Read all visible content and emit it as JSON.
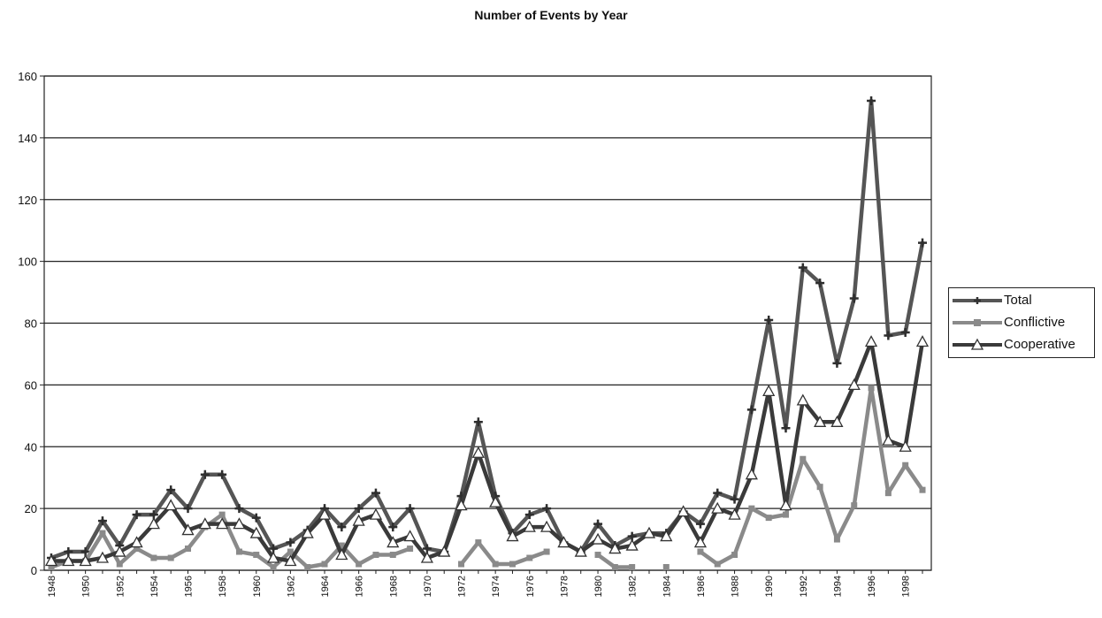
{
  "chart_data": {
    "type": "line",
    "title": "Number of Events by Year",
    "xlabel": "",
    "ylabel": "",
    "ylim": [
      0,
      160
    ],
    "yticks": [
      0,
      20,
      40,
      60,
      80,
      100,
      120,
      140,
      160
    ],
    "x": [
      1948,
      1949,
      1950,
      1951,
      1952,
      1953,
      1954,
      1955,
      1956,
      1957,
      1958,
      1959,
      1960,
      1961,
      1962,
      1963,
      1964,
      1965,
      1966,
      1967,
      1968,
      1969,
      1970,
      1971,
      1972,
      1973,
      1974,
      1975,
      1976,
      1977,
      1978,
      1979,
      1980,
      1981,
      1982,
      1983,
      1984,
      1985,
      1986,
      1987,
      1988,
      1989,
      1990,
      1991,
      1992,
      1993,
      1994,
      1995,
      1996,
      1997,
      1998,
      1999
    ],
    "xtick_labels": [
      "1948",
      "1950",
      "1952",
      "1954",
      "1956",
      "1958",
      "1960",
      "1962",
      "1964",
      "1966",
      "1968",
      "1970",
      "1972",
      "1974",
      "1976",
      "1978",
      "1980",
      "1982",
      "1984",
      "1986",
      "1988",
      "1990",
      "1992",
      "1994",
      "1996",
      "1998"
    ],
    "grid": true,
    "legend_position": "right",
    "series": [
      {
        "name": "Total",
        "color": "#555555",
        "marker": "cross",
        "values": [
          4,
          6,
          6,
          16,
          8,
          18,
          18,
          26,
          20,
          31,
          31,
          20,
          17,
          7,
          9,
          13,
          20,
          14,
          20,
          25,
          14,
          20,
          7,
          6,
          24,
          48,
          24,
          12,
          18,
          20,
          9,
          6,
          15,
          8,
          11,
          12,
          12,
          19,
          15,
          25,
          23,
          52,
          81,
          46,
          98,
          93,
          67,
          88,
          152,
          76,
          77,
          106
        ]
      },
      {
        "name": "Conflictive",
        "color": "#8a8a8a",
        "marker": "square",
        "values": [
          1,
          3,
          3,
          12,
          2,
          7,
          4,
          4,
          7,
          14,
          18,
          6,
          5,
          1,
          6,
          1,
          2,
          8,
          2,
          5,
          5,
          7,
          null,
          null,
          2,
          9,
          2,
          2,
          4,
          6,
          null,
          null,
          5,
          1,
          1,
          null,
          1,
          null,
          6,
          2,
          5,
          20,
          17,
          18,
          36,
          27,
          10,
          21,
          59,
          25,
          34,
          26
        ]
      },
      {
        "name": "Cooperative",
        "color": "#3a3a3a",
        "marker": "triangle",
        "values": [
          3,
          3,
          3,
          4,
          6,
          9,
          15,
          21,
          13,
          15,
          15,
          15,
          12,
          4,
          3,
          12,
          18,
          5,
          16,
          18,
          9,
          11,
          4,
          6,
          21,
          38,
          22,
          11,
          14,
          14,
          9,
          6,
          10,
          7,
          8,
          12,
          11,
          19,
          9,
          20,
          18,
          31,
          58,
          21,
          55,
          48,
          48,
          60,
          74,
          42,
          40,
          74
        ]
      }
    ]
  }
}
